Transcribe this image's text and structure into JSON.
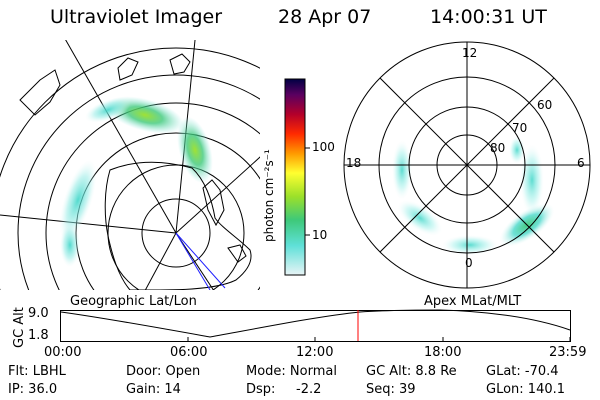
{
  "header": {
    "instrument": "Ultraviolet Imager",
    "date": "28 Apr 07",
    "time": "14:00:31 UT"
  },
  "colorbar": {
    "label": "photon cm⁻²s⁻¹",
    "ticks": [
      "100",
      "10"
    ]
  },
  "geo_panel": {
    "label": "Geographic Lat/Lon"
  },
  "apex_panel": {
    "label": "Apex MLat/MLT",
    "mlt_labels": [
      "12",
      "18",
      "6",
      "0"
    ],
    "lat_labels": [
      "60",
      "70",
      "80"
    ]
  },
  "altitude_plot": {
    "ylabel": "GC Alt",
    "yticks": [
      "9.0",
      "1.8"
    ],
    "xticks": [
      "00:00",
      "06:00",
      "12:00",
      "18:00",
      "23:59"
    ],
    "marker_time": "14:00:31",
    "marker_color": "#ff0000"
  },
  "status": {
    "row1": {
      "filter": "Flt: LBHL",
      "door": "Door: Open",
      "mode": "Mode: Normal",
      "gc_alt": "GC Alt: 8.8 Re",
      "glat": "GLat: -70.4"
    },
    "row2": {
      "ip": "IP: 36.0",
      "gain": "Gain: 14",
      "dsp_label": "Dsp:",
      "dsp_value": "-2.2",
      "seq": "Seq: 39",
      "glon": "GLon: 140.1"
    }
  },
  "colors": {
    "aurora_low": "#5fe0d8",
    "aurora_mid": "#3ec97a",
    "aurora_high": "#9be02a"
  }
}
